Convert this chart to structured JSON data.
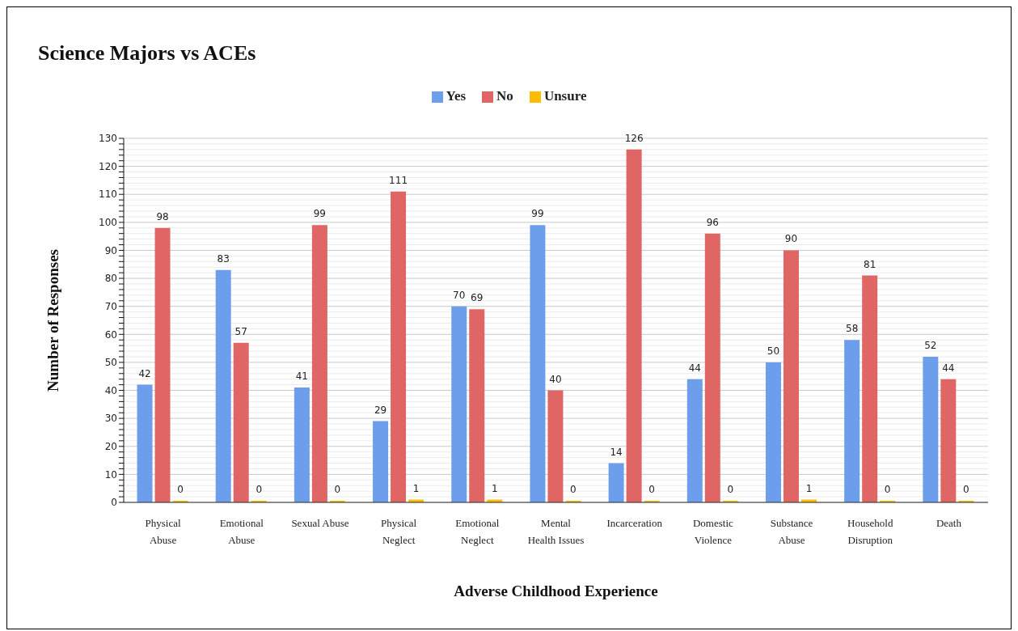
{
  "chart_data": {
    "type": "bar",
    "title": "Science Majors vs ACEs",
    "xlabel": "Adverse Childhood Experience",
    "ylabel": "Number of Responses",
    "categories": [
      "Physical Abuse",
      "Emotional Abuse",
      "Sexual Abuse",
      "Physical Neglect",
      "Emotional Neglect",
      "Mental Health Issues",
      "Incarceration",
      "Domestic Violence",
      "Substance Abuse",
      "Household Disruption",
      "Death"
    ],
    "series": [
      {
        "name": "Yes",
        "color": "#6d9eeb",
        "values": [
          42,
          83,
          41,
          29,
          70,
          99,
          14,
          44,
          50,
          58,
          52
        ]
      },
      {
        "name": "No",
        "color": "#e06666",
        "values": [
          98,
          57,
          99,
          111,
          69,
          40,
          126,
          96,
          90,
          81,
          44
        ]
      },
      {
        "name": "Unsure",
        "color": "#fbbc04",
        "values": [
          0,
          0,
          0,
          1,
          1,
          0,
          0,
          0,
          1,
          0,
          0
        ]
      }
    ],
    "ylim": [
      0,
      130
    ],
    "yticks": [
      0,
      {
        "value": 2,
        "label": null
      },
      {
        "value": 4,
        "label": null
      },
      {
        "value": 6,
        "label": null
      },
      {
        "value": 8,
        "label": null
      },
      10,
      {
        "value": 12,
        "label": null
      },
      {
        "value": 14,
        "label": null
      },
      {
        "value": 16,
        "label": null
      },
      {
        "value": 18,
        "label": null
      },
      20,
      {
        "value": 22,
        "label": null
      },
      {
        "value": 24,
        "label": null
      },
      {
        "value": 26,
        "label": null
      },
      {
        "value": 28,
        "label": null
      },
      30,
      {
        "value": 32,
        "label": null
      },
      {
        "value": 34,
        "label": null
      },
      {
        "value": 36,
        "label": null
      },
      {
        "value": 38,
        "label": null
      },
      40,
      {
        "value": 42,
        "label": null
      },
      {
        "value": 44,
        "label": null
      },
      {
        "value": 46,
        "label": null
      },
      {
        "value": 48,
        "label": null
      },
      50,
      {
        "value": 52,
        "label": null
      },
      {
        "value": 54,
        "label": null
      },
      {
        "value": 56,
        "label": null
      },
      {
        "value": 58,
        "label": null
      },
      60,
      {
        "value": 62,
        "label": null
      },
      {
        "value": 64,
        "label": null
      },
      {
        "value": 66,
        "label": null
      },
      {
        "value": 68,
        "label": null
      },
      70,
      {
        "value": 72,
        "label": null
      },
      {
        "value": 74,
        "label": null
      },
      {
        "value": 76,
        "label": null
      },
      {
        "value": 78,
        "label": null
      },
      80,
      {
        "value": 82,
        "label": null
      },
      {
        "value": 84,
        "label": null
      },
      {
        "value": 86,
        "label": null
      },
      {
        "value": 88,
        "label": null
      },
      90,
      {
        "value": 92,
        "label": null
      },
      {
        "value": 94,
        "label": null
      },
      {
        "value": 96,
        "label": null
      },
      {
        "value": 98,
        "label": null
      },
      100,
      {
        "value": 102,
        "label": null
      },
      {
        "value": 104,
        "label": null
      },
      {
        "value": 106,
        "label": null
      },
      {
        "value": 108,
        "label": null
      },
      110,
      {
        "value": 112,
        "label": null
      },
      {
        "value": 114,
        "label": null
      },
      {
        "value": 116,
        "label": null
      },
      {
        "value": 118,
        "label": null
      },
      120,
      {
        "value": 122,
        "label": null
      },
      {
        "value": 124,
        "label": null
      },
      {
        "value": 126,
        "label": null
      },
      {
        "value": 128,
        "label": null
      },
      130
    ],
    "grid": "y",
    "legend": "top",
    "data_labels": true
  }
}
